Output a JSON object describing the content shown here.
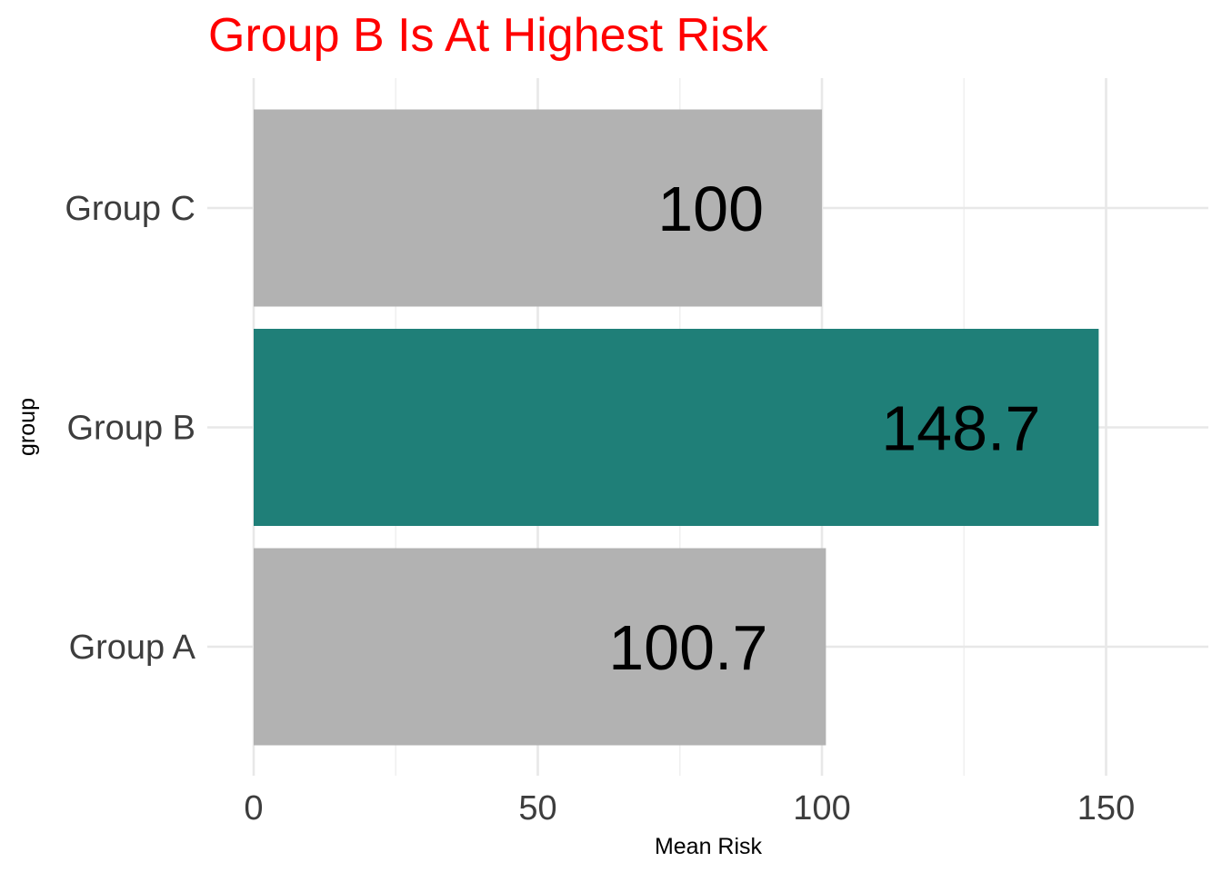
{
  "chart_data": {
    "type": "bar",
    "orientation": "horizontal",
    "title": "Group B Is At Highest Risk",
    "xlabel": "Mean Risk",
    "ylabel": "group",
    "categories": [
      "Group A",
      "Group B",
      "Group C"
    ],
    "values": [
      100.7,
      148.7,
      100
    ],
    "data_labels": [
      "100.7",
      "148.7",
      "100"
    ],
    "highlight_category": "Group B",
    "xlim": [
      0,
      168
    ],
    "x_ticks": [
      0,
      50,
      100,
      150
    ],
    "x_tick_labels": [
      "0",
      "50",
      "100",
      "150"
    ],
    "grid": true,
    "legend": "none",
    "colors": {
      "highlight": "#1f7f78",
      "default": "#b2b2b2",
      "title": "#ff0000",
      "grid": "#ebebeb",
      "tick_text": "#3d3d3d"
    }
  }
}
